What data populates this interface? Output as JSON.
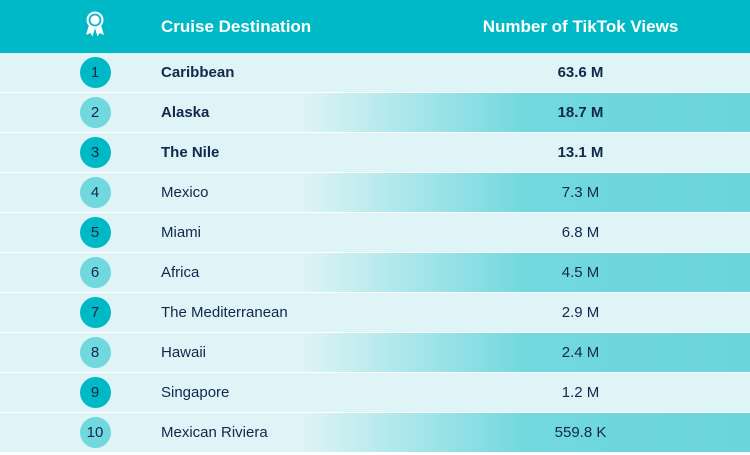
{
  "header": {
    "rank_icon": "award-ribbon-icon",
    "destination_label": "Cruise Destination",
    "views_label": "Number of TikTok Views"
  },
  "colors": {
    "header_bg": "#00b9c6",
    "row_light": "#dff4f6",
    "row_accent": "#6ad6dc",
    "text": "#13284b"
  },
  "rows": [
    {
      "rank": "1",
      "destination": "Caribbean",
      "views": "63.6 M"
    },
    {
      "rank": "2",
      "destination": "Alaska",
      "views": "18.7 M"
    },
    {
      "rank": "3",
      "destination": "The Nile",
      "views": "13.1 M"
    },
    {
      "rank": "4",
      "destination": "Mexico",
      "views": "7.3 M"
    },
    {
      "rank": "5",
      "destination": "Miami",
      "views": "6.8 M"
    },
    {
      "rank": "6",
      "destination": "Africa",
      "views": "4.5 M"
    },
    {
      "rank": "7",
      "destination": "The Mediterranean",
      "views": "2.9 M"
    },
    {
      "rank": "8",
      "destination": "Hawaii",
      "views": "2.4 M"
    },
    {
      "rank": "9",
      "destination": "Singapore",
      "views": "1.2 M"
    },
    {
      "rank": "10",
      "destination": "Mexican Riviera",
      "views": "559.8 K"
    }
  ]
}
